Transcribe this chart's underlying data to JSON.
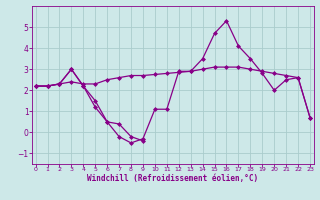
{
  "xlabel": "Windchill (Refroidissement éolien,°C)",
  "background_color": "#cde8e8",
  "grid_color": "#aacccc",
  "line_color": "#880088",
  "series": [
    {
      "x": [
        0,
        1,
        2,
        3,
        4,
        5,
        6,
        7,
        8,
        9,
        10,
        11,
        12,
        13,
        14,
        15,
        16,
        17,
        18,
        19,
        20,
        21,
        22,
        23
      ],
      "y": [
        2.2,
        2.2,
        2.3,
        2.4,
        2.3,
        2.3,
        2.5,
        2.6,
        2.7,
        2.7,
        2.75,
        2.8,
        2.85,
        2.9,
        3.0,
        3.1,
        3.1,
        3.1,
        3.0,
        2.9,
        2.8,
        2.7,
        2.6,
        0.7
      ]
    },
    {
      "x": [
        0,
        1,
        2,
        3,
        4,
        5,
        6,
        7,
        8,
        9,
        10,
        11,
        12,
        13,
        14,
        15,
        16,
        17,
        18,
        19,
        20,
        21,
        22,
        23
      ],
      "y": [
        2.2,
        2.2,
        2.3,
        3.0,
        2.2,
        1.5,
        0.5,
        -0.2,
        -0.5,
        -0.3,
        1.1,
        1.1,
        2.9,
        2.9,
        3.5,
        4.7,
        5.3,
        4.1,
        3.5,
        2.8,
        2.0,
        2.5,
        2.6,
        0.7
      ]
    },
    {
      "x": [
        0,
        1,
        2,
        3,
        4,
        5,
        6,
        7,
        8,
        9
      ],
      "y": [
        2.2,
        2.2,
        2.3,
        3.0,
        2.2,
        1.2,
        0.5,
        0.4,
        -0.2,
        -0.4
      ]
    }
  ],
  "ylim": [
    -1.5,
    6.0
  ],
  "xlim": [
    -0.3,
    23.3
  ],
  "yticks": [
    -1,
    0,
    1,
    2,
    3,
    4,
    5
  ],
  "xticks": [
    0,
    1,
    2,
    3,
    4,
    5,
    6,
    7,
    8,
    9,
    10,
    11,
    12,
    13,
    14,
    15,
    16,
    17,
    18,
    19,
    20,
    21,
    22,
    23
  ],
  "marker": "D",
  "markersize": 2.0,
  "linewidth": 0.9
}
